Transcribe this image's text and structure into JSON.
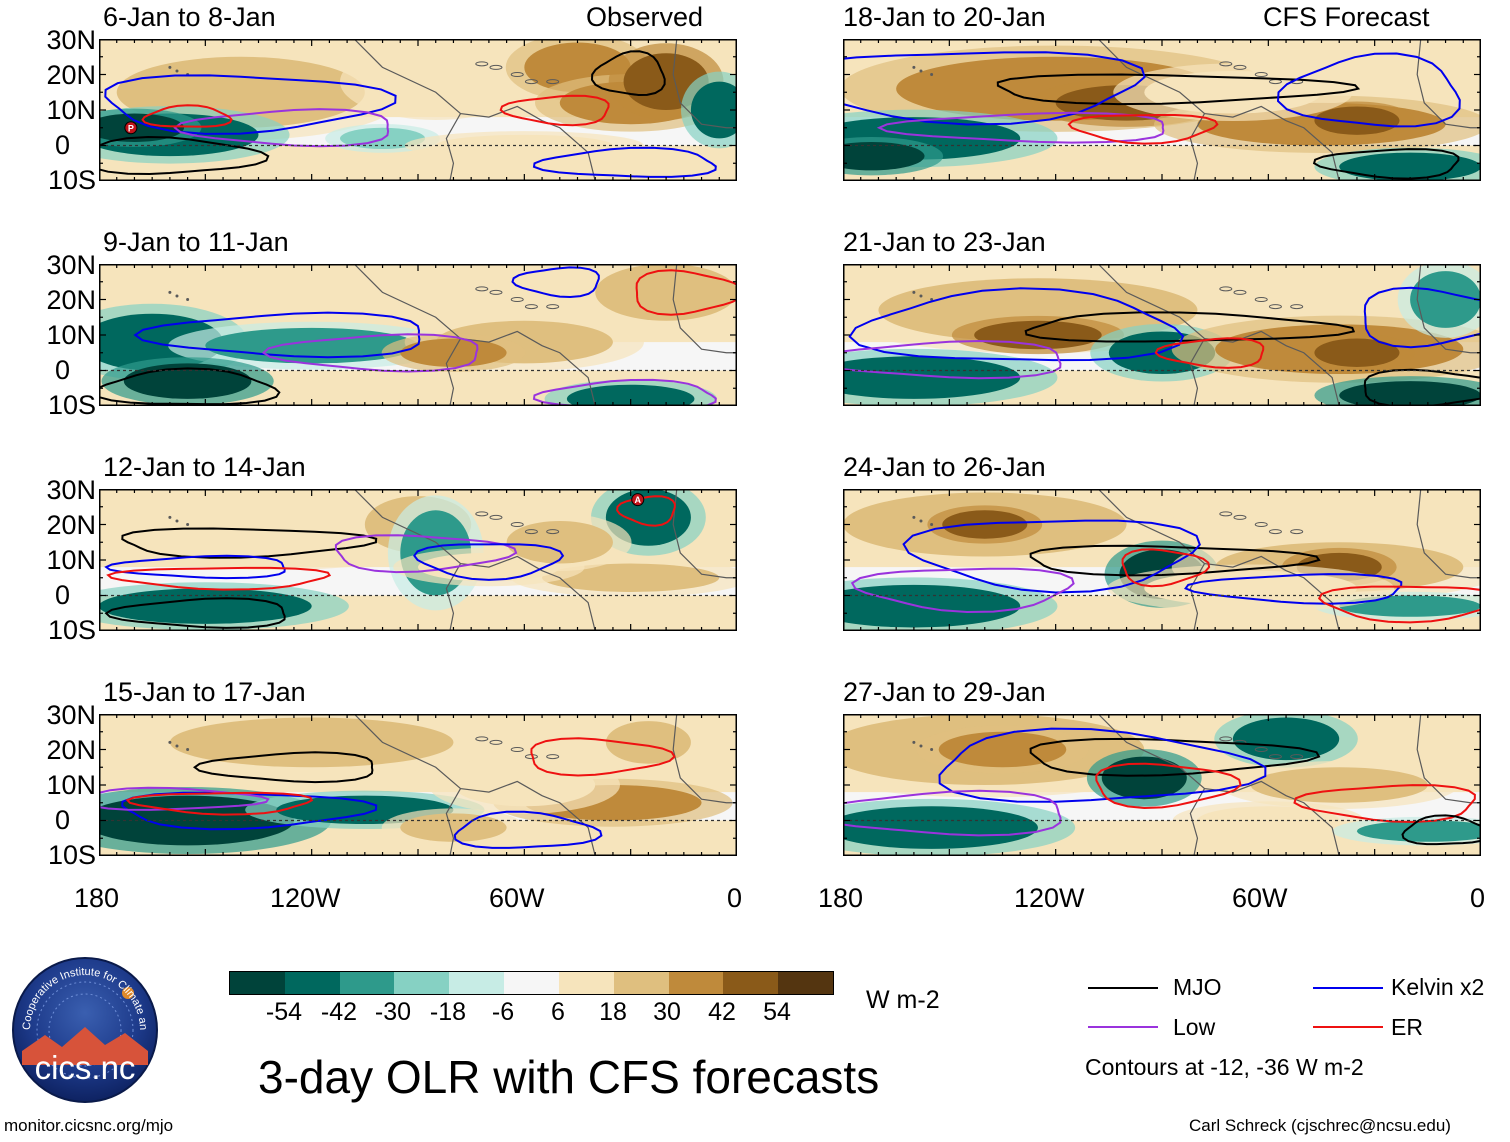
{
  "header": {
    "observed_label": "Observed",
    "forecast_label": "CFS Forecast"
  },
  "lat_labels": [
    "30N",
    "20N",
    "10N",
    "0",
    "10S"
  ],
  "lon_labels": [
    "180",
    "120W",
    "60W",
    "0"
  ],
  "panels": {
    "left": [
      "6-Jan to 8-Jan",
      "9-Jan to 11-Jan",
      "12-Jan to 14-Jan",
      "15-Jan to 17-Jan"
    ],
    "right": [
      "18-Jan to 20-Jan",
      "21-Jan to 23-Jan",
      "24-Jan to 26-Jan",
      "27-Jan to 29-Jan"
    ]
  },
  "markers": [
    {
      "panel": "left0",
      "letter": "P"
    },
    {
      "panel": "left2",
      "letter": "A"
    }
  ],
  "colorbar": {
    "labels": [
      "-54",
      "-42",
      "-30",
      "-18",
      "-6",
      "6",
      "18",
      "30",
      "42",
      "54"
    ],
    "colors": [
      "#00433a",
      "#00685e",
      "#2e9a8b",
      "#86d1c3",
      "#c7ece5",
      "#f6f6f6",
      "#f6e4bc",
      "#dfbf7f",
      "#bf8a3b",
      "#8a5a19",
      "#543510"
    ],
    "units": "W m-2"
  },
  "legend": {
    "items": [
      {
        "label": "MJO",
        "color": "#000000"
      },
      {
        "label": "Kelvin x2",
        "color": "#0000ee"
      },
      {
        "label": "Low",
        "color": "#9a33dd"
      },
      {
        "label": "ER",
        "color": "#ee1111"
      }
    ],
    "note": "Contours at -12, -36 W m-2"
  },
  "logo": {
    "text": "cics.nc",
    "ring_text": "Cooperative Institute for Climate and Satellites"
  },
  "title": "3-day OLR with CFS forecasts",
  "footer": {
    "left": "monitor.cicsnc.org/mjo",
    "right": "Carl Schreck (cjschrec@ncsu.edu)"
  }
}
